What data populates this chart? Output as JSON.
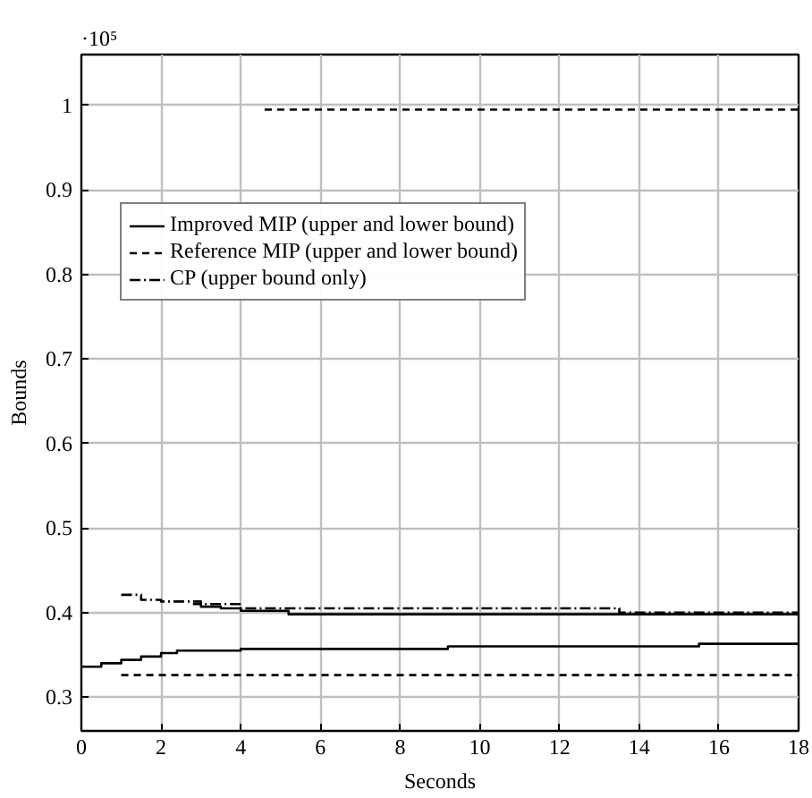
{
  "chart_data": {
    "type": "step",
    "xlabel": "Seconds",
    "ylabel": "Bounds",
    "annotations": [
      "·10⁵"
    ],
    "xlim": [
      0,
      18
    ],
    "ylim": [
      0.26,
      1.06
    ],
    "xticks": [
      0,
      2,
      4,
      6,
      8,
      10,
      12,
      14,
      16,
      18
    ],
    "yticks": [
      0.3,
      0.4,
      0.5,
      0.6,
      0.7,
      0.8,
      0.9,
      1
    ],
    "grid": true,
    "legend": "top left",
    "series": [
      {
        "name": "Improved MIP (upper and lower bound)",
        "color": "#000000",
        "line_style": "solid",
        "x": [
          0,
          0.5,
          1,
          1.5,
          2,
          2.4,
          4,
          9.2,
          15.5,
          18
        ],
        "values": [
          0.336,
          0.34,
          0.344,
          0.348,
          0.352,
          0.355,
          0.357,
          0.36,
          0.363,
          0.363
        ]
      },
      {
        "color": "#000000",
        "line_style": "solid",
        "x": [
          2.8,
          3.0,
          3.5,
          4,
          5.2,
          18
        ],
        "values": [
          0.41,
          0.407,
          0.405,
          0.402,
          0.398,
          0.398
        ]
      },
      {
        "name": "Reference MIP (upper and lower bound)",
        "color": "#000000",
        "line_style": "dashed",
        "x": [
          1,
          18
        ],
        "values": [
          0.326,
          0.326
        ]
      },
      {
        "color": "#000000",
        "line_style": "dashed",
        "x": [
          4.6,
          18
        ],
        "values": [
          0.995,
          0.995
        ]
      },
      {
        "name": "CP (upper bound only)",
        "color": "#000000",
        "line_style": "dashdot",
        "x": [
          1,
          1.5,
          2,
          3,
          4,
          13.5,
          18
        ],
        "values": [
          0.421,
          0.415,
          0.413,
          0.41,
          0.405,
          0.4,
          0.4
        ]
      }
    ]
  }
}
